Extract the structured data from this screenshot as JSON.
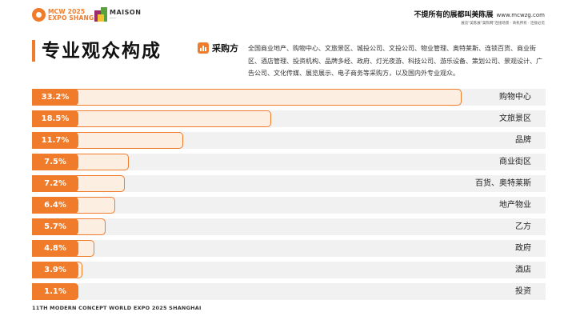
{
  "header": {
    "logo_line1": "MCW 2025",
    "logo_line2": "EXPO SHANGHAI",
    "maison_name": "MAISON",
    "maison_sub": "——",
    "slogan": "不提所有的展都叫美陈展",
    "site": "www.mcwzg.com",
    "slogan_sub": "展览\"美陈展\"美陈网\"连接场景 · 商机所有 · 连接必见"
  },
  "title": "专业观众构成",
  "buyer": {
    "label": "采购方",
    "description": "全国商业地产、购物中心、文旅景区、城投公司、文投公司、物业管理、奥特莱斯、连锁百货、商业街区、酒店管理、投资机构、品牌多经、政府、灯光夜游、科技公司、游乐设备、策划公司、景观设计、广告公司、文化传媒、展览展示、电子商务等采购方，以及国内外专业观众。"
  },
  "chart_data": {
    "type": "bar",
    "orientation": "horizontal",
    "value_unit": "%",
    "grid": false,
    "legend": "none",
    "categories": [
      "购物中心",
      "文旅景区",
      "品牌",
      "商业街区",
      "百货、奥特莱斯",
      "地产物业",
      "乙方",
      "政府",
      "酒店",
      "投资"
    ],
    "values": [
      33.2,
      18.5,
      11.7,
      7.5,
      7.2,
      6.4,
      5.7,
      4.8,
      3.9,
      1.1
    ],
    "value_labels": [
      "33.2%",
      "18.5%",
      "11.7%",
      "7.5%",
      "7.2%",
      "6.4%",
      "5.7%",
      "4.8%",
      "3.9%",
      "1.1%"
    ],
    "colors": {
      "accent": "#ef7b2b",
      "bar_fill": "#fdeee2",
      "track": "#f1f1f1"
    }
  },
  "footer": "11TH MODERN CONCEPT WORLD EXPO 2025 SHANGHAI"
}
